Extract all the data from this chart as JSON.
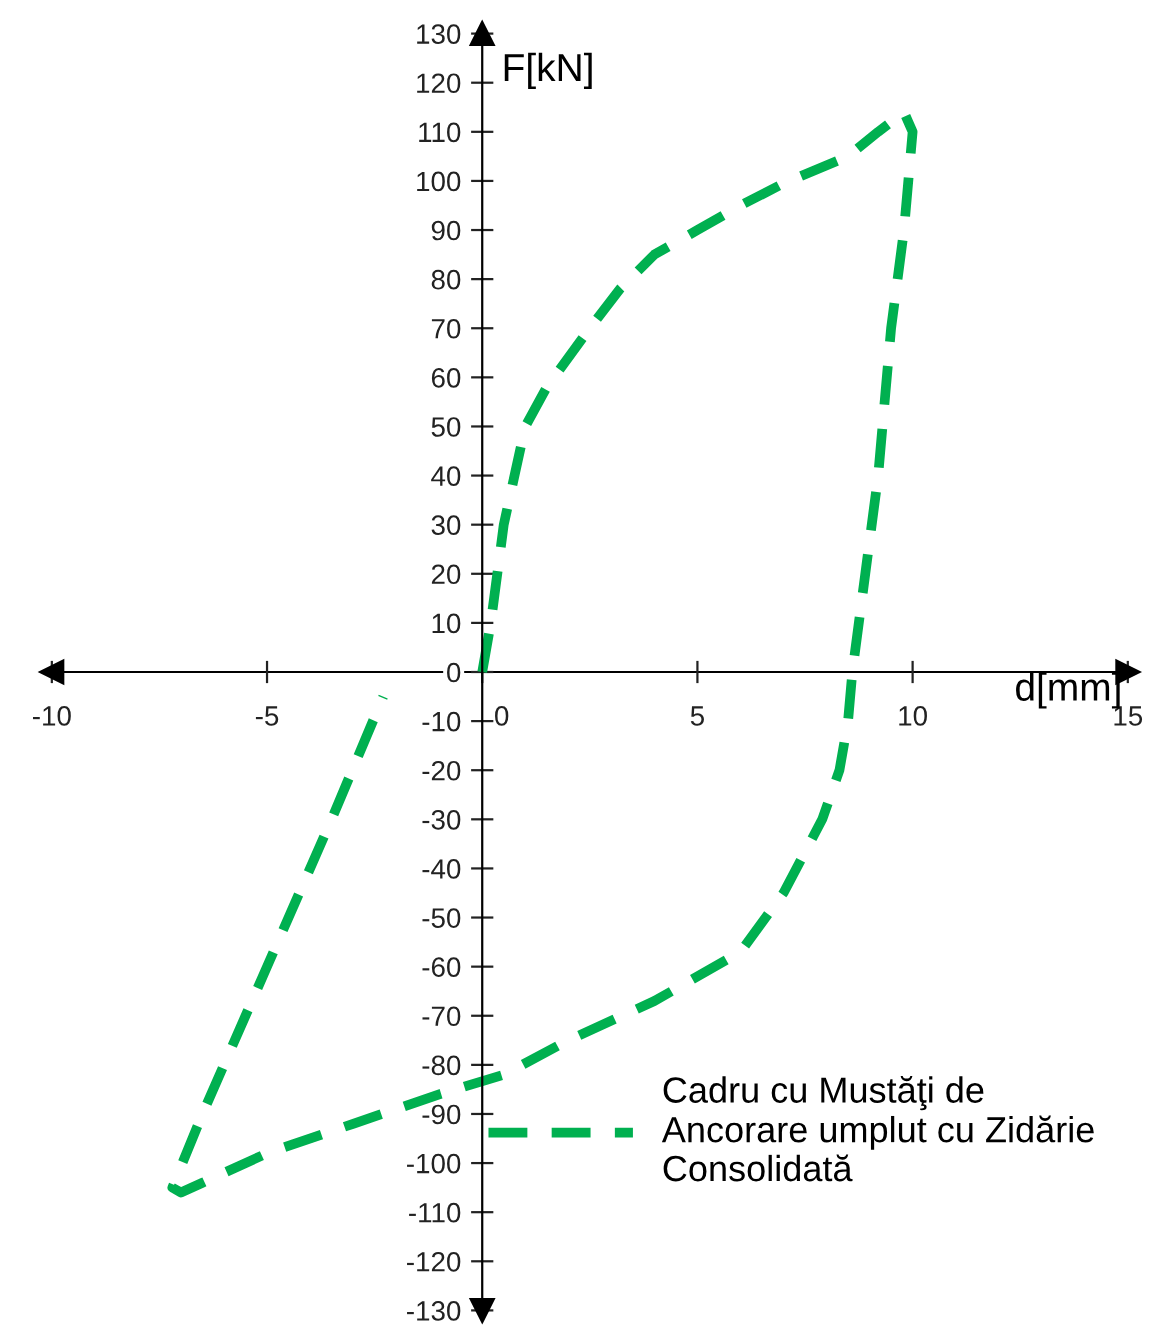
{
  "chart_data": {
    "type": "line",
    "xlabel": "d[mm]",
    "ylabel": "F[kN]",
    "xlim": [
      -10,
      15
    ],
    "xticks": [
      -10,
      -5,
      0,
      5,
      10,
      15
    ],
    "ylim": [
      -130,
      130
    ],
    "yticks": [
      -130,
      -120,
      -110,
      -100,
      -90,
      -80,
      -70,
      -60,
      -50,
      -40,
      -30,
      -20,
      -10,
      0,
      10,
      20,
      30,
      40,
      50,
      60,
      70,
      80,
      90,
      100,
      110,
      120,
      130
    ],
    "grid": false,
    "legend": "bottom right",
    "marker": "none",
    "line_style": "dashed",
    "series": [
      {
        "name": "Cadru cu Mustăţi de\nAncorare umplut cu Zidărie\nConsolidată",
        "color": "#00b050",
        "x": [
          0,
          0.2,
          0.5,
          1,
          1.5,
          2.5,
          3.2,
          4,
          5,
          6,
          7,
          8.5,
          9.2,
          9.8,
          10,
          9.8,
          9.5,
          9.2,
          8.9,
          8.6,
          8.5,
          8.3,
          7.9,
          7,
          6,
          4,
          2,
          0.5,
          -1,
          -3,
          -5,
          -6.5,
          -7,
          -7.2,
          -6.5,
          -5,
          -3.5,
          -2.3
        ],
        "values": [
          0,
          10,
          30,
          50,
          58,
          70,
          78,
          85,
          90,
          95,
          99.5,
          105,
          110,
          114,
          110,
          90,
          70,
          40,
          20,
          0,
          -10,
          -20,
          -30,
          -45,
          -57,
          -67,
          -75,
          -82,
          -86,
          -92,
          -98,
          -104,
          -106,
          -105,
          -90,
          -60,
          -30,
          -5
        ]
      }
    ]
  }
}
